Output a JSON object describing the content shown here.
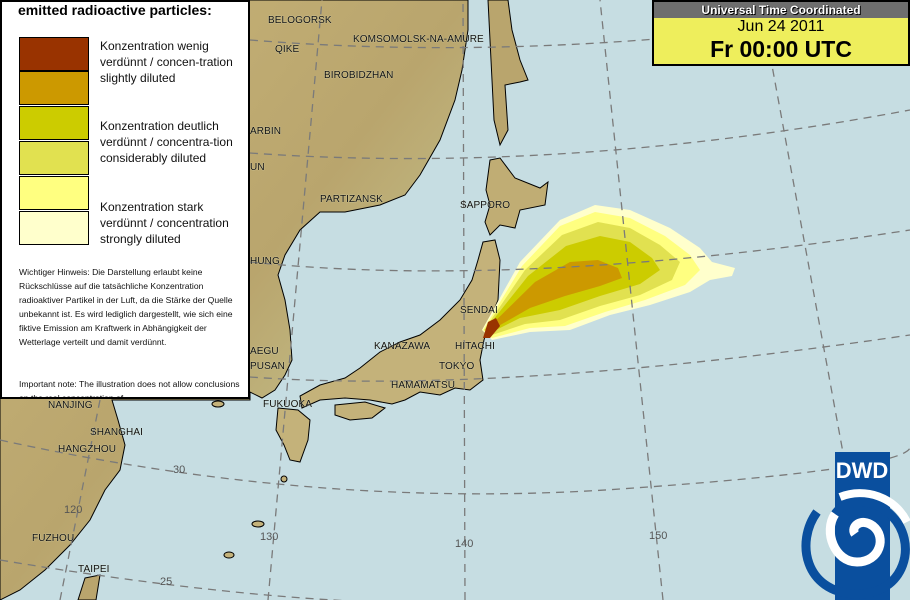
{
  "legend": {
    "title": "emitted radioactive particles:",
    "classes": [
      {
        "color": "#993300"
      },
      {
        "color": "#cc9900"
      },
      {
        "color": "#cccc00"
      },
      {
        "color": "#e1e150"
      },
      {
        "color": "#ffff80"
      },
      {
        "color": "#ffffcc"
      }
    ],
    "labels": [
      "Konzentration wenig verdünnt / concen-tration slightly diluted",
      "Konzentration deutlich verdünnt / concentra-tion considerably diluted",
      "Konzentration stark verdünnt / concentration strongly diluted"
    ],
    "note_de": "Wichtiger Hinweis: Die Darstellung erlaubt keine Rückschlüsse auf die tatsächliche Konzentration radioaktiver Partikel in der Luft, da die Stärke der Quelle unbekannt ist. Es wird lediglich dargestellt, wie sich eine fiktive Emission am Kraftwerk in Abhängigkeit der Wetterlage verteilt und damit verdünnt.",
    "note_en": "Important note: The illustration does not allow conclusions on the real concentration of"
  },
  "utc": {
    "header": "Universal Time Coordinated",
    "date": "Jun 24 2011",
    "time": "Fr 00:00 UTC"
  },
  "cities": [
    {
      "name": "BELOGORSK"
    },
    {
      "name": "QIKE"
    },
    {
      "name": "KOMSOMOLSK-NA-AMURE"
    },
    {
      "name": "BIROBIDZHAN"
    },
    {
      "name": "ARBIN"
    },
    {
      "name": "UN"
    },
    {
      "name": "PARTIZANSK"
    },
    {
      "name": "SAPPORO"
    },
    {
      "name": "HUNG"
    },
    {
      "name": "SENDAI"
    },
    {
      "name": "KANAZAWA"
    },
    {
      "name": "HITACHI"
    },
    {
      "name": "TOKYO"
    },
    {
      "name": "HAMAMATSU"
    },
    {
      "name": "AEGU"
    },
    {
      "name": "PUSAN"
    },
    {
      "name": "FUKUOKA"
    },
    {
      "name": "NANJING"
    },
    {
      "name": "SHANGHAI"
    },
    {
      "name": "HANGZHOU"
    },
    {
      "name": "FUZHOU"
    },
    {
      "name": "TAIPEI"
    }
  ],
  "grid_labels": {
    "lat30": "30",
    "lat25": "25",
    "lon120": "120",
    "lon130": "130",
    "lon140": "140",
    "lon150": "150"
  },
  "logo": {
    "text": "DWD",
    "color": "#0a4f9e"
  },
  "colors": {
    "sea": "#c6dde2",
    "land_low": "#d6e6b8",
    "land_high": "#b09a62"
  }
}
